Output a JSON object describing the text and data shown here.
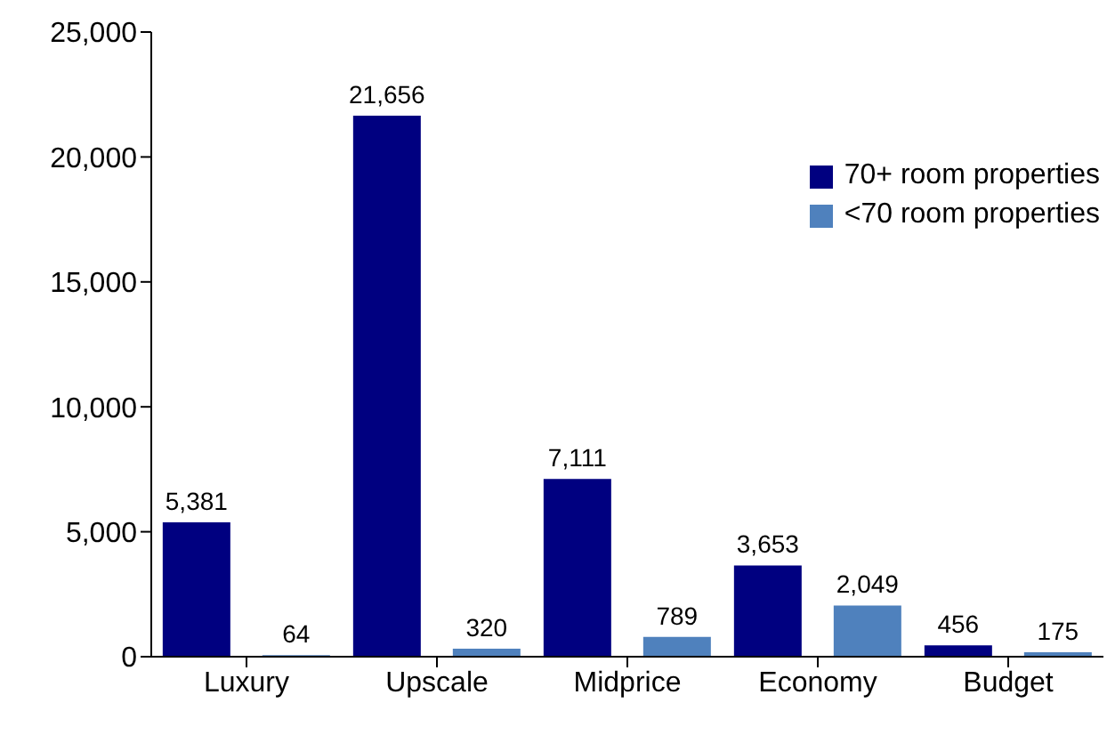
{
  "chart_data": {
    "type": "bar",
    "categories": [
      "Luxury",
      "Upscale",
      "Midprice",
      "Economy",
      "Budget"
    ],
    "series": [
      {
        "name": "70+ room properties",
        "color": "#000080",
        "values": [
          5381,
          21656,
          7111,
          3653,
          456
        ],
        "value_labels": [
          "5,381",
          "21,656",
          "7,111",
          "3,653",
          "456"
        ]
      },
      {
        "name": "<70 room properties",
        "color": "#4f81bd",
        "values": [
          64,
          320,
          789,
          2049,
          175
        ],
        "value_labels": [
          "64",
          "320",
          "789",
          "2,049",
          "175"
        ]
      }
    ],
    "ylim": [
      0,
      25000
    ],
    "yticks": [
      {
        "value": 0,
        "label": "0"
      },
      {
        "value": 5000,
        "label": "5,000"
      },
      {
        "value": 10000,
        "label": "10,000"
      },
      {
        "value": 15000,
        "label": "15,000"
      },
      {
        "value": 20000,
        "label": "20,000"
      },
      {
        "value": 25000,
        "label": "25,000"
      }
    ],
    "grid": false,
    "legend": "top right"
  }
}
